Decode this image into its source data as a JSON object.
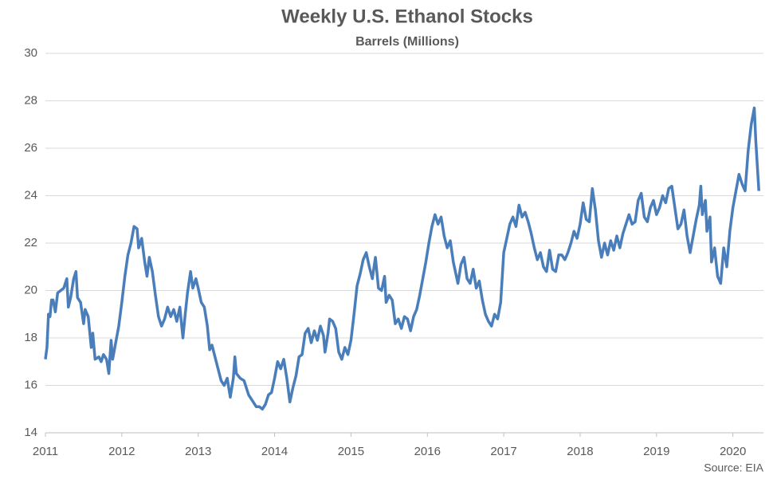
{
  "chart_data": {
    "type": "line",
    "title": "Weekly U.S. Ethanol Stocks",
    "subtitle": "Barrels (Millions)",
    "source": "Source: EIA",
    "x": [
      2011.0,
      2011.02,
      2011.04,
      2011.06,
      2011.08,
      2011.1,
      2011.13,
      2011.16,
      2011.2,
      2011.24,
      2011.28,
      2011.3,
      2011.33,
      2011.37,
      2011.4,
      2011.42,
      2011.46,
      2011.5,
      2011.52,
      2011.56,
      2011.6,
      2011.62,
      2011.65,
      2011.7,
      2011.73,
      2011.76,
      2011.8,
      2011.83,
      2011.86,
      2011.88,
      2011.92,
      2011.96,
      2012.0,
      2012.04,
      2012.08,
      2012.12,
      2012.16,
      2012.2,
      2012.22,
      2012.26,
      2012.3,
      2012.33,
      2012.36,
      2012.4,
      2012.44,
      2012.48,
      2012.52,
      2012.56,
      2012.6,
      2012.64,
      2012.68,
      2012.72,
      2012.76,
      2012.8,
      2012.83,
      2012.86,
      2012.9,
      2012.93,
      2012.97,
      2013.0,
      2013.04,
      2013.08,
      2013.12,
      2013.15,
      2013.18,
      2013.22,
      2013.26,
      2013.3,
      2013.34,
      2013.38,
      2013.42,
      2013.46,
      2013.48,
      2013.5,
      2013.55,
      2013.6,
      2013.66,
      2013.72,
      2013.76,
      2013.8,
      2013.84,
      2013.88,
      2013.92,
      2013.96,
      2014.0,
      2014.04,
      2014.08,
      2014.12,
      2014.16,
      2014.2,
      2014.24,
      2014.28,
      2014.32,
      2014.36,
      2014.4,
      2014.44,
      2014.48,
      2014.52,
      2014.56,
      2014.6,
      2014.64,
      2014.66,
      2014.7,
      2014.72,
      2014.76,
      2014.8,
      2014.84,
      2014.88,
      2014.92,
      2014.96,
      2015.0,
      2015.04,
      2015.08,
      2015.12,
      2015.16,
      2015.2,
      2015.24,
      2015.28,
      2015.32,
      2015.36,
      2015.4,
      2015.44,
      2015.46,
      2015.5,
      2015.54,
      2015.58,
      2015.62,
      2015.66,
      2015.7,
      2015.74,
      2015.78,
      2015.82,
      2015.86,
      2015.9,
      2015.94,
      2015.98,
      2016.02,
      2016.06,
      2016.1,
      2016.14,
      2016.18,
      2016.22,
      2016.26,
      2016.3,
      2016.34,
      2016.38,
      2016.4,
      2016.44,
      2016.48,
      2016.52,
      2016.56,
      2016.6,
      2016.64,
      2016.68,
      2016.72,
      2016.76,
      2016.8,
      2016.84,
      2016.88,
      2016.92,
      2016.96,
      2017.0,
      2017.04,
      2017.08,
      2017.12,
      2017.16,
      2017.2,
      2017.24,
      2017.28,
      2017.32,
      2017.36,
      2017.4,
      2017.44,
      2017.48,
      2017.52,
      2017.56,
      2017.6,
      2017.64,
      2017.68,
      2017.72,
      2017.76,
      2017.8,
      2017.84,
      2017.88,
      2017.92,
      2017.96,
      2018.0,
      2018.04,
      2018.08,
      2018.12,
      2018.16,
      2018.2,
      2018.24,
      2018.28,
      2018.32,
      2018.36,
      2018.4,
      2018.44,
      2018.48,
      2018.52,
      2018.56,
      2018.6,
      2018.64,
      2018.68,
      2018.72,
      2018.76,
      2018.8,
      2018.84,
      2018.88,
      2018.92,
      2018.96,
      2019.0,
      2019.04,
      2019.08,
      2019.12,
      2019.16,
      2019.2,
      2019.24,
      2019.28,
      2019.32,
      2019.36,
      2019.4,
      2019.44,
      2019.48,
      2019.52,
      2019.56,
      2019.58,
      2019.6,
      2019.64,
      2019.66,
      2019.7,
      2019.72,
      2019.76,
      2019.8,
      2019.84,
      2019.88,
      2019.92,
      2019.96,
      2020.0,
      2020.04,
      2020.08,
      2020.12,
      2020.16,
      2020.2,
      2020.24,
      2020.28,
      2020.3,
      2020.34
    ],
    "series": [
      {
        "color": "#4a7ebb",
        "values": [
          17.1,
          17.6,
          19.0,
          18.9,
          19.6,
          19.6,
          19.1,
          19.9,
          20.0,
          20.1,
          20.5,
          19.3,
          19.7,
          20.5,
          20.8,
          19.7,
          19.5,
          18.6,
          19.2,
          18.9,
          17.6,
          18.2,
          17.1,
          17.2,
          17.0,
          17.3,
          17.1,
          16.5,
          17.9,
          17.1,
          17.8,
          18.5,
          19.5,
          20.6,
          21.5,
          22.0,
          22.7,
          22.6,
          21.8,
          22.2,
          21.2,
          20.6,
          21.4,
          20.8,
          19.8,
          18.9,
          18.5,
          18.8,
          19.3,
          18.9,
          19.2,
          18.7,
          19.3,
          18.0,
          19.0,
          19.9,
          20.8,
          20.1,
          20.5,
          20.1,
          19.5,
          19.3,
          18.5,
          17.5,
          17.7,
          17.2,
          16.7,
          16.2,
          16.0,
          16.3,
          15.5,
          16.3,
          17.2,
          16.5,
          16.3,
          16.2,
          15.6,
          15.3,
          15.1,
          15.1,
          15.0,
          15.2,
          15.6,
          15.7,
          16.3,
          17.0,
          16.7,
          17.1,
          16.3,
          15.3,
          15.9,
          16.4,
          17.2,
          17.3,
          18.2,
          18.4,
          17.8,
          18.3,
          17.9,
          18.5,
          18.1,
          17.4,
          18.2,
          18.8,
          18.7,
          18.4,
          17.4,
          17.1,
          17.6,
          17.3,
          17.9,
          19.0,
          20.2,
          20.7,
          21.3,
          21.6,
          21.0,
          20.5,
          21.4,
          20.1,
          20.0,
          20.6,
          19.5,
          19.8,
          19.6,
          18.6,
          18.8,
          18.4,
          18.9,
          18.8,
          18.3,
          18.9,
          19.2,
          19.8,
          20.5,
          21.2,
          22.0,
          22.7,
          23.2,
          22.8,
          23.1,
          22.3,
          21.8,
          22.1,
          21.2,
          20.6,
          20.3,
          21.1,
          21.4,
          20.5,
          20.3,
          20.9,
          20.1,
          20.4,
          19.6,
          19.0,
          18.7,
          18.5,
          19.0,
          18.8,
          19.5,
          21.6,
          22.2,
          22.8,
          23.1,
          22.7,
          23.6,
          23.1,
          23.3,
          22.9,
          22.4,
          21.8,
          21.3,
          21.6,
          21.0,
          20.8,
          21.7,
          20.9,
          20.8,
          21.5,
          21.5,
          21.3,
          21.6,
          22.0,
          22.5,
          22.2,
          22.8,
          23.7,
          23.0,
          22.9,
          24.3,
          23.4,
          22.1,
          21.4,
          22.0,
          21.5,
          22.1,
          21.7,
          22.3,
          21.8,
          22.4,
          22.8,
          23.2,
          22.8,
          22.9,
          23.8,
          24.1,
          23.1,
          22.9,
          23.5,
          23.8,
          23.2,
          23.5,
          24.0,
          23.7,
          24.3,
          24.4,
          23.5,
          22.6,
          22.8,
          23.4,
          22.3,
          21.6,
          22.3,
          23.0,
          23.6,
          24.4,
          23.2,
          23.8,
          22.5,
          23.1,
          21.2,
          21.8,
          20.6,
          20.3,
          21.8,
          21.0,
          22.5,
          23.5,
          24.2,
          24.9,
          24.5,
          24.2,
          25.9,
          27.0,
          27.7,
          26.3,
          24.2
        ]
      }
    ],
    "xlim": [
      2011,
      2020.4
    ],
    "xticks": [
      2011,
      2012,
      2013,
      2014,
      2015,
      2016,
      2017,
      2018,
      2019,
      2020
    ],
    "ylim": [
      14,
      30
    ],
    "yticks": [
      14,
      16,
      18,
      20,
      22,
      24,
      26,
      28,
      30
    ],
    "grid": true
  }
}
